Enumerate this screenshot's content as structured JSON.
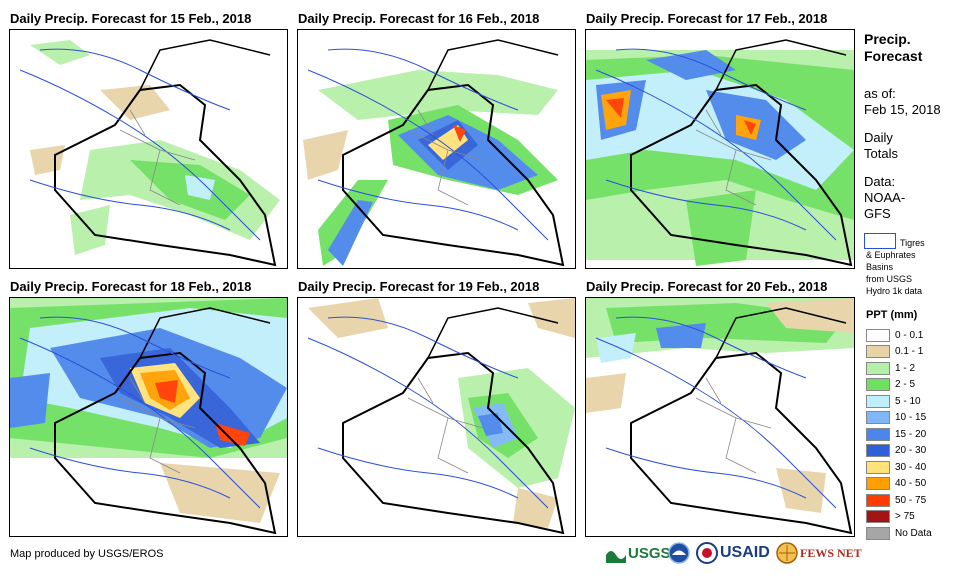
{
  "panels": [
    {
      "title": "Daily Precip. Forecast for 15 Feb., 2018"
    },
    {
      "title": "Daily Precip. Forecast for 16 Feb., 2018"
    },
    {
      "title": "Daily Precip. Forecast for 17 Feb., 2018"
    },
    {
      "title": "Daily Precip. Forecast for 18 Feb., 2018"
    },
    {
      "title": "Daily Precip. Forecast for 19 Feb., 2018"
    },
    {
      "title": "Daily Precip. Forecast for 20 Feb., 2018"
    }
  ],
  "sidebar": {
    "title_line1": "Precip.",
    "title_line2": "Forecast",
    "asof_line1": "as of:",
    "asof_line2": "Feb 15, 2018",
    "daily_line1": "Daily",
    "daily_line2": "Totals",
    "data_line1": "Data:",
    "data_line2": "NOAA-",
    "data_line3": "GFS",
    "basin_line1": "Tigres",
    "basin_line2": "& Euphrates",
    "basin_line3": "Basins",
    "basin_line4": "from USGS",
    "basin_line5": "Hydro 1k data"
  },
  "legend": {
    "title": "PPT (mm)",
    "items": [
      {
        "label": "0 - 0.1",
        "color": "#ffffff"
      },
      {
        "label": "0.1 - 1",
        "color": "#e8d3a8"
      },
      {
        "label": "1 - 2",
        "color": "#b5f0a8"
      },
      {
        "label": "2 - 5",
        "color": "#6fe060"
      },
      {
        "label": "5 - 10",
        "color": "#bfeffa"
      },
      {
        "label": "10 - 15",
        "color": "#7fb8f5"
      },
      {
        "label": "15 - 20",
        "color": "#4b86ec"
      },
      {
        "label": "20 - 30",
        "color": "#2f5fd9"
      },
      {
        "label": "30 - 40",
        "color": "#ffe27a"
      },
      {
        "label": "40 - 50",
        "color": "#ffa000"
      },
      {
        "label": "50 - 75",
        "color": "#ff3c00"
      },
      {
        "label": "> 75",
        "color": "#a31515"
      },
      {
        "label": "No Data",
        "color": "#a6a6a6"
      }
    ]
  },
  "footer": {
    "credit": "Map produced by USGS/EROS",
    "logo_usgs": "USGS",
    "logo_usaid": "USAID",
    "logo_fewsnet": "FEWS NET"
  }
}
